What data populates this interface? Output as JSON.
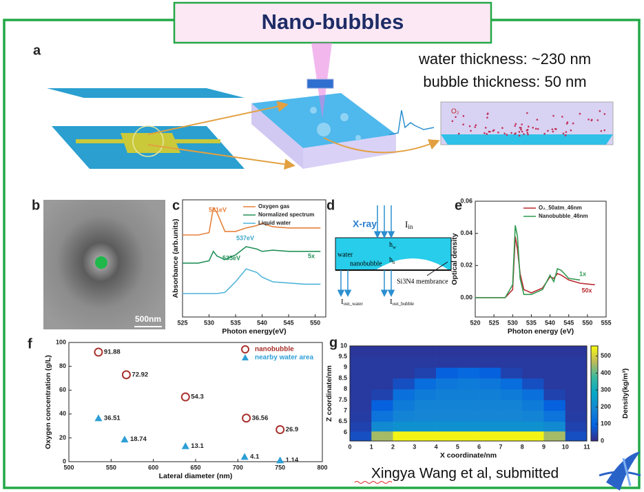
{
  "header": {
    "title": "Nano-bubbles"
  },
  "panels": {
    "a": "a",
    "b": "b",
    "c": "c",
    "d": "d",
    "e": "e",
    "f": "f",
    "g": "g"
  },
  "panel_a": {
    "notes": [
      "water thickness: ~230 nm",
      "bubble thickness: 50 nm"
    ],
    "molecule": "O₂"
  },
  "panel_b": {
    "scale_bar": "500nm"
  },
  "panel_d": {
    "xray": "X-ray",
    "I": "I",
    "in": "in",
    "out_water": "out_water",
    "out_bubble": "out_bubble",
    "water": "water",
    "nanobubble": "nanobubble",
    "h": "h",
    "w": "w",
    "b": "b",
    "membrane": "Si3N4 membrance"
  },
  "chart_data": [
    {
      "type": "line",
      "xlabel": "Photon energy(eV)",
      "ylabel": "Absorbance (arb.units)",
      "x": [
        525,
        528,
        530,
        530.8,
        531.5,
        533,
        535,
        537,
        539,
        540,
        542,
        545,
        548,
        551
      ],
      "series": [
        {
          "name": "Oxygen gas",
          "color": "#e5803a",
          "values": [
            7.0,
            7.0,
            7.2,
            9.3,
            8.9,
            7.3,
            7.3,
            7.6,
            7.8,
            8.0,
            7.7,
            7.6,
            7.6,
            7.6
          ]
        },
        {
          "name": "Normalized spectrum",
          "color": "#23915a",
          "values": [
            4.6,
            4.6,
            4.8,
            5.6,
            5.2,
            4.9,
            5.3,
            6.0,
            5.8,
            5.6,
            5.7,
            5.6,
            5.6,
            5.6
          ]
        },
        {
          "name": "Liquid water",
          "color": "#4fb3d9",
          "values": [
            2.0,
            2.0,
            2.0,
            2.0,
            2.0,
            2.1,
            3.0,
            4.1,
            3.8,
            3.4,
            3.0,
            2.9,
            2.8,
            2.8
          ]
        }
      ],
      "xlim": [
        525,
        552
      ],
      "ylim": [
        0,
        10
      ],
      "xticks": [
        525,
        530,
        535,
        540,
        545,
        550
      ],
      "legend": "upper right",
      "annotations": [
        "531eV",
        "537eV",
        "535eV",
        "5x"
      ]
    },
    {
      "type": "line",
      "xlabel": "Photon energy (eV)",
      "ylabel": "Optical density",
      "x": [
        520,
        525,
        528,
        530,
        530.7,
        531.3,
        532,
        533,
        535,
        538,
        540,
        541,
        542,
        543,
        545,
        548,
        552
      ],
      "series": [
        {
          "name": "O₂_50atm_46nm",
          "color": "#b8292f",
          "values": [
            0.0,
            0.0,
            0.0,
            0.005,
            0.038,
            0.03,
            0.015,
            0.005,
            0.003,
            0.006,
            0.013,
            0.012,
            0.015,
            0.014,
            0.011,
            0.009,
            0.008
          ]
        },
        {
          "name": "Nanobubble_46nm",
          "color": "#2f9a4f",
          "values": [
            0.0,
            0.0,
            0.0,
            0.008,
            0.045,
            0.038,
            0.012,
            0.002,
            0.002,
            0.005,
            0.014,
            0.01,
            0.018,
            0.017,
            0.012,
            0.011,
            null
          ]
        }
      ],
      "xlim": [
        520,
        555
      ],
      "ylim": [
        -0.012,
        0.06
      ],
      "xticks": [
        520,
        525,
        530,
        535,
        540,
        545,
        550,
        555
      ],
      "yticks": [
        {
          "value": 0,
          "label": "0.00"
        },
        {
          "value": 0.02,
          "label": "0.02"
        },
        {
          "value": 0.04,
          "label": "0.04"
        },
        {
          "value": 0.06,
          "label": "0.06"
        }
      ],
      "legend": "upper right",
      "annotations": [
        "1x",
        "50x"
      ]
    },
    {
      "type": "scatter",
      "xlabel": "Lateral diameter (nm)",
      "ylabel": "Oxygen concentration (g/L)",
      "series": [
        {
          "name": "nanobubble",
          "color": "#a8302b",
          "marker": "circle",
          "x": [
            535,
            568,
            638,
            710,
            750
          ],
          "values": [
            91.88,
            72.92,
            54.3,
            36.56,
            26.9
          ]
        },
        {
          "name": "nearby water area",
          "color": "#2e9fd6",
          "marker": "triangle",
          "x": [
            535,
            566,
            638,
            708,
            750
          ],
          "values": [
            36.51,
            18.74,
            13.1,
            4.1,
            1.14
          ]
        }
      ],
      "xlim": [
        500,
        800
      ],
      "ylim": [
        0,
        100
      ],
      "xticks": [
        500,
        550,
        600,
        650,
        700,
        750,
        800
      ],
      "yticks": [
        0,
        20,
        40,
        60,
        80,
        100
      ],
      "legend": "upper right"
    },
    {
      "type": "heatmap",
      "xlabel": "X coordinate/nm",
      "ylabel": "Z coordinate/nm",
      "colormap": "parula",
      "x": [
        0.5,
        1.5,
        2.5,
        3.5,
        4.5,
        5.5,
        6.5,
        7.5,
        8.5,
        9.5,
        10.5
      ],
      "y": [
        5.85,
        6.25,
        6.75,
        7.25,
        7.75,
        8.25,
        8.75,
        9.25,
        9.75
      ],
      "z": [
        [
          60,
          450,
          550,
          550,
          550,
          550,
          550,
          550,
          550,
          450,
          60
        ],
        [
          40,
          200,
          220,
          220,
          220,
          220,
          220,
          220,
          220,
          200,
          40
        ],
        [
          30,
          140,
          180,
          190,
          190,
          190,
          190,
          190,
          180,
          140,
          30
        ],
        [
          25,
          90,
          160,
          180,
          180,
          180,
          180,
          180,
          160,
          90,
          25
        ],
        [
          25,
          40,
          130,
          160,
          170,
          170,
          170,
          160,
          130,
          40,
          25
        ],
        [
          25,
          25,
          60,
          120,
          150,
          160,
          150,
          120,
          60,
          25,
          25
        ],
        [
          25,
          25,
          25,
          40,
          90,
          110,
          90,
          40,
          25,
          25,
          25
        ],
        [
          25,
          25,
          25,
          25,
          25,
          25,
          25,
          25,
          25,
          25,
          25
        ],
        [
          20,
          20,
          20,
          20,
          20,
          20,
          20,
          20,
          20,
          20,
          20
        ]
      ],
      "xlim": [
        0,
        11
      ],
      "ylim": [
        5.6,
        10
      ],
      "xticks": [
        0,
        1,
        2,
        3,
        4,
        5,
        6,
        7,
        8,
        9,
        10,
        11
      ],
      "yticks": [
        6,
        6.5,
        7,
        7.5,
        8,
        8.5,
        9,
        9.5,
        10
      ],
      "colorbar": {
        "label": "Density(kg/m³)",
        "lim": [
          0,
          560
        ],
        "ticks": [
          0,
          100,
          200,
          300,
          400,
          500
        ]
      }
    }
  ],
  "footer": {
    "citation": "Xingya Wang et al, submitted"
  }
}
